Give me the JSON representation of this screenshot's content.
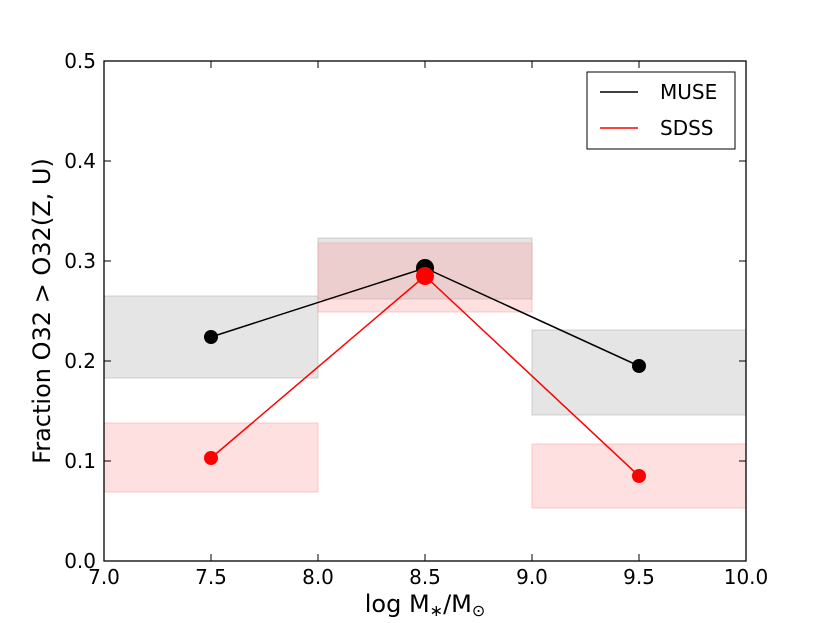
{
  "chart_data": {
    "type": "line",
    "title": "",
    "xlabel_parts": [
      "log M",
      "∗",
      "/M",
      "⊙"
    ],
    "ylabel": "Fraction O32 > O32(Z, U)",
    "xlim": [
      7.0,
      10.0
    ],
    "ylim": [
      0.0,
      0.5
    ],
    "xticks": [
      "7.0",
      "7.5",
      "8.0",
      "8.5",
      "9.0",
      "9.5",
      "10.0"
    ],
    "yticks": [
      "0.0",
      "0.1",
      "0.2",
      "0.3",
      "0.4",
      "0.5"
    ],
    "grid": false,
    "legend_position": "top-right",
    "series": [
      {
        "name": "MUSE",
        "color": "#000000",
        "x": [
          7.5,
          8.5,
          9.5
        ],
        "y": [
          0.224,
          0.293,
          0.195
        ],
        "bands": [
          {
            "x0": 7.0,
            "x1": 8.0,
            "y0": 0.183,
            "y1": 0.265
          },
          {
            "x0": 8.0,
            "x1": 9.0,
            "y0": 0.262,
            "y1": 0.323
          },
          {
            "x0": 9.0,
            "x1": 10.0,
            "y0": 0.146,
            "y1": 0.231
          }
        ],
        "band_color": "#aaaaaa"
      },
      {
        "name": "SDSS",
        "color": "#ff0000",
        "x": [
          7.5,
          8.5,
          9.5
        ],
        "y": [
          0.103,
          0.285,
          0.085
        ],
        "bands": [
          {
            "x0": 7.0,
            "x1": 8.0,
            "y0": 0.069,
            "y1": 0.138
          },
          {
            "x0": 8.0,
            "x1": 9.0,
            "y0": 0.249,
            "y1": 0.318
          },
          {
            "x0": 9.0,
            "x1": 10.0,
            "y0": 0.053,
            "y1": 0.117
          }
        ],
        "band_color": "#ff9999"
      }
    ]
  }
}
